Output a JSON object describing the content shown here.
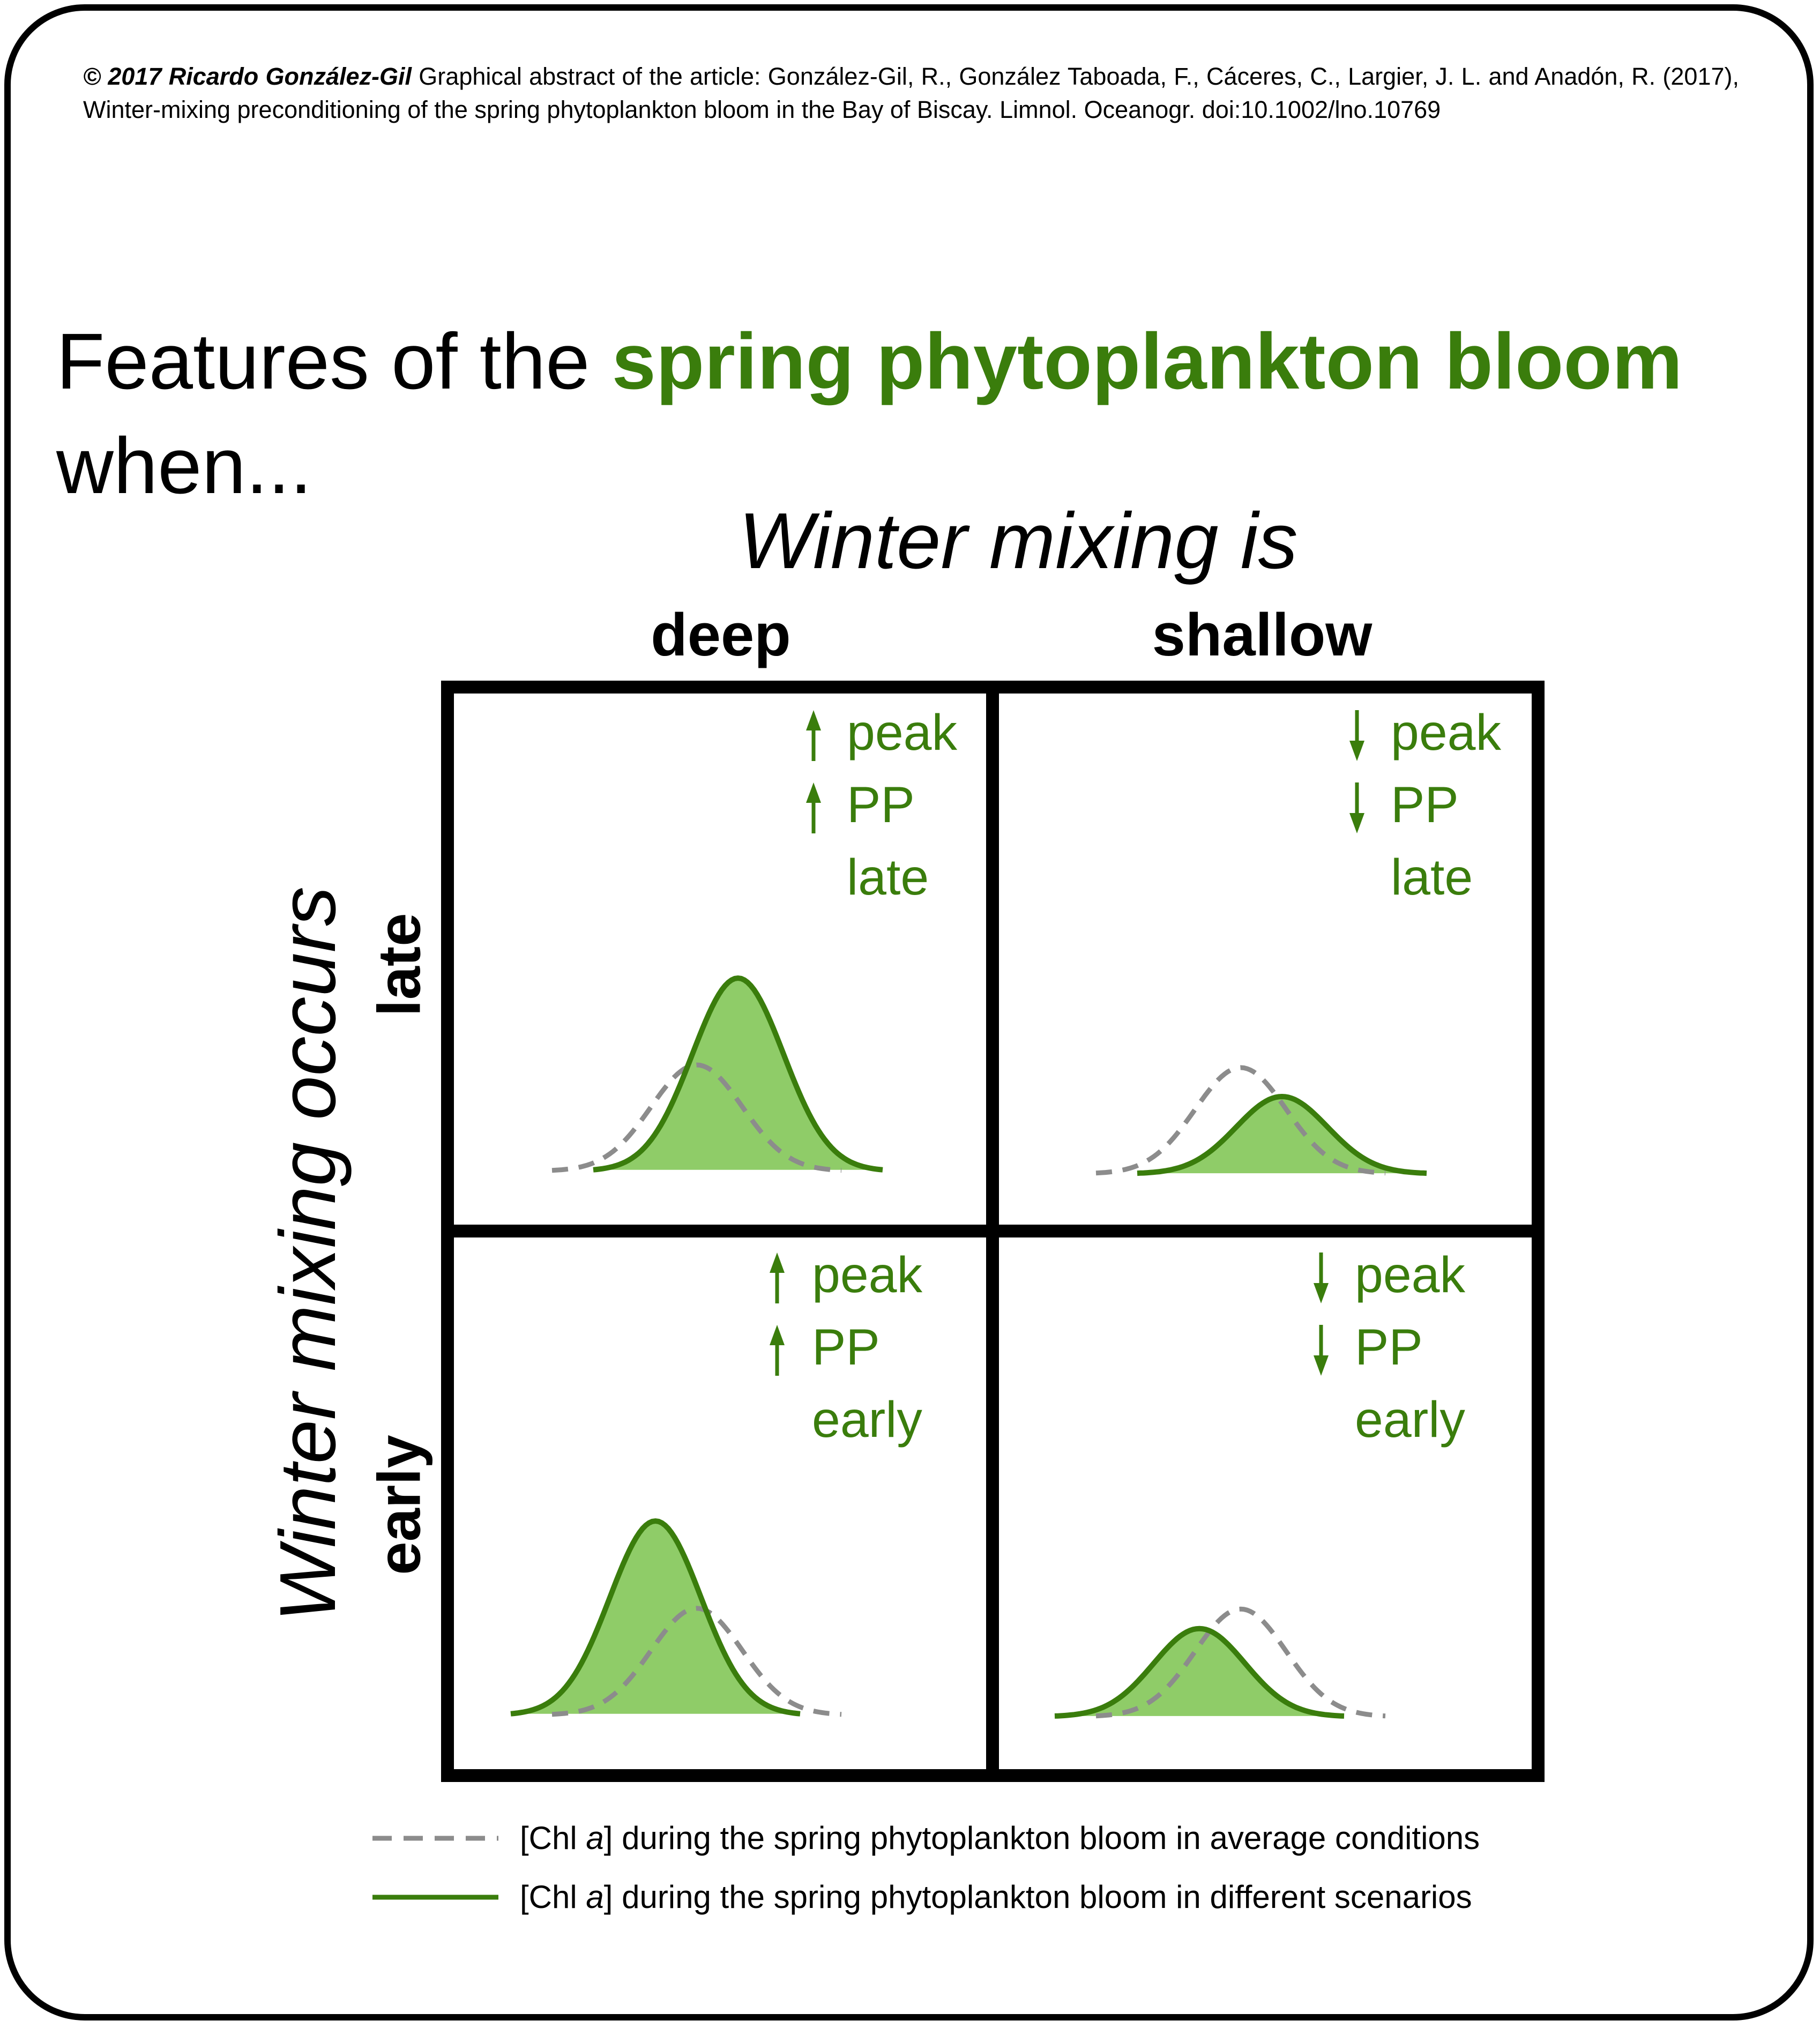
{
  "credit": {
    "author": "© 2017 Ricardo González-Gil",
    "text": " Graphical abstract of the article: González-Gil, R., González Taboada, F., Cáceres, C., Largier, J. L. and Anadón, R. (2017), Winter-mixing preconditioning of the spring phytoplankton bloom in the Bay of Biscay. Limnol. Oceanogr. doi:10.1002/lno.10769"
  },
  "title": {
    "prefix": "Features of the ",
    "highlight": "spring phytoplankton bloom",
    "line2": "when..."
  },
  "columns": {
    "axis_title": "Winter mixing is",
    "deep": "deep",
    "shallow": "shallow"
  },
  "rows": {
    "axis_title": "Winter mixing occurs",
    "late": "late",
    "early": "early"
  },
  "cells": {
    "late_deep": {
      "peak": "peak",
      "pp": "PP",
      "timing": "late",
      "direction": "up",
      "curve_peak": 1.0,
      "curve_shift": 0.7
    },
    "late_shallow": {
      "peak": "peak",
      "pp": "PP",
      "timing": "late",
      "direction": "down",
      "curve_peak": 0.4,
      "curve_shift": 0.7
    },
    "early_deep": {
      "peak": "peak",
      "pp": "PP",
      "timing": "early",
      "direction": "up",
      "curve_peak": 1.0,
      "curve_shift": -0.7
    },
    "early_shallow": {
      "peak": "peak",
      "pp": "PP",
      "timing": "early",
      "direction": "down",
      "curve_peak": 0.45,
      "curve_shift": -0.7
    }
  },
  "legend": {
    "average": {
      "prefix": "[Chl ",
      "italic": "a",
      "suffix": "] during the spring phytoplankton bloom in average conditions"
    },
    "scenario": {
      "prefix": "[Chl ",
      "italic": "a",
      "suffix": "] during the spring phytoplankton bloom in different scenarios"
    }
  },
  "colors": {
    "accent_green": "#3a7d0c",
    "fill_green": "#8fcc68",
    "average_gray": "#8c8c8c"
  }
}
